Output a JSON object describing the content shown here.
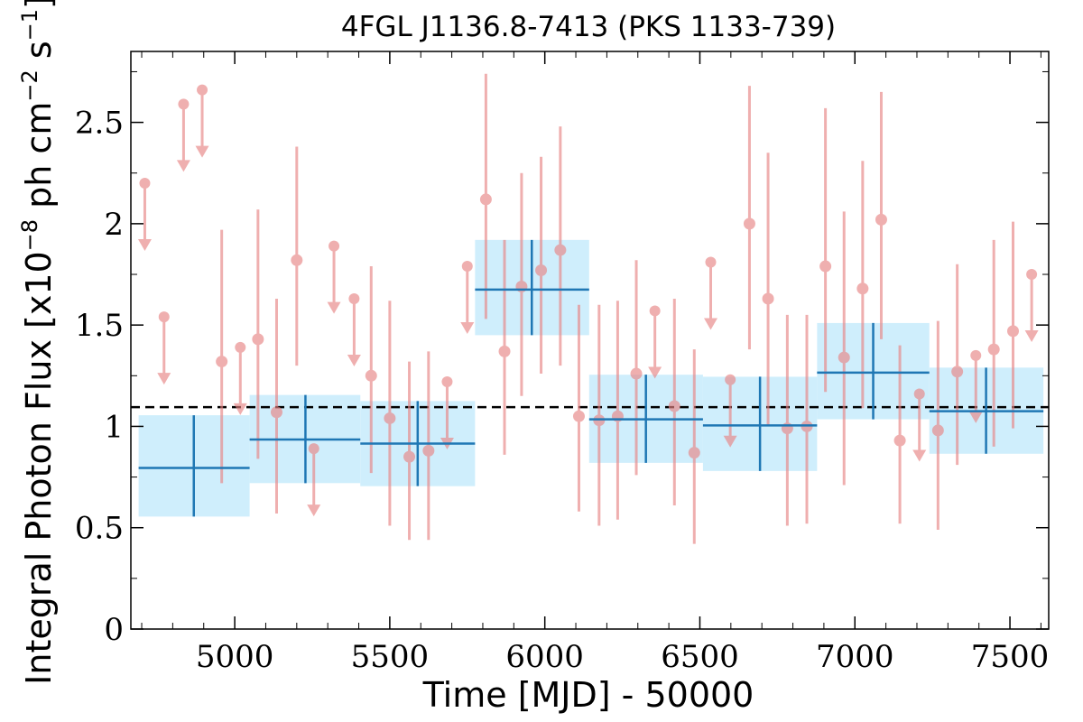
{
  "chart_data": {
    "type": "scatter",
    "title": "4FGL J1136.8-7413 (PKS 1133-739)",
    "xlabel": "Time [MJD] - 50000",
    "ylabel": {
      "prefix": "Integral Photon Flux [x10",
      "exp1": "−8",
      "mid": " ph cm",
      "exp2": "−2",
      "mid2": " s",
      "exp3": "−1",
      "suffix": "]"
    },
    "xlim": [
      4665,
      7625
    ],
    "ylim": [
      0,
      2.85
    ],
    "xticks": [
      5000,
      5500,
      6000,
      6500,
      7000,
      7500
    ],
    "yticks": [
      {
        "value": 0,
        "label": "0"
      },
      {
        "value": 0.5,
        "label": "0.5"
      },
      {
        "value": 1,
        "label": "1"
      },
      {
        "value": 1.5,
        "label": "1.5"
      },
      {
        "value": 2,
        "label": "2"
      },
      {
        "value": 2.5,
        "label": "2.5"
      }
    ],
    "reference_line": {
      "y": 1.095,
      "style": "dashed",
      "color": "#000000"
    },
    "colors": {
      "short_bins": "#e88585",
      "long_bins": "#1f77b4",
      "long_bins_band": "#cfeefc"
    },
    "series": [
      {
        "kind": "short_bins",
        "detections": [
          {
            "x": 5075,
            "y": 1.43,
            "ylo": 0.84,
            "yhi": 2.07
          },
          {
            "x": 5135,
            "y": 1.07,
            "ylo": 0.57,
            "yhi": 1.63
          },
          {
            "x": 5200,
            "y": 1.82,
            "ylo": 1.3,
            "yhi": 2.38
          },
          {
            "x": 4958,
            "y": 1.32,
            "ylo": 0.72,
            "yhi": 1.97
          },
          {
            "x": 5440,
            "y": 1.25,
            "ylo": 0.77,
            "yhi": 1.79
          },
          {
            "x": 5500,
            "y": 1.04,
            "ylo": 0.51,
            "yhi": 1.62
          },
          {
            "x": 5563,
            "y": 0.85,
            "ylo": 0.44,
            "yhi": 1.32
          },
          {
            "x": 5625,
            "y": 0.88,
            "ylo": 0.44,
            "yhi": 1.37
          },
          {
            "x": 5810,
            "y": 2.12,
            "ylo": 1.53,
            "yhi": 2.74
          },
          {
            "x": 5870,
            "y": 1.37,
            "ylo": 0.86,
            "yhi": 1.92
          },
          {
            "x": 5925,
            "y": 1.69,
            "ylo": 1.15,
            "yhi": 2.25
          },
          {
            "x": 5988,
            "y": 1.77,
            "ylo": 1.26,
            "yhi": 2.33
          },
          {
            "x": 6050,
            "y": 1.87,
            "ylo": 1.3,
            "yhi": 2.48
          },
          {
            "x": 6110,
            "y": 1.05,
            "ylo": 0.58,
            "yhi": 1.6
          },
          {
            "x": 6175,
            "y": 1.03,
            "ylo": 0.51,
            "yhi": 1.6
          },
          {
            "x": 6235,
            "y": 1.05,
            "ylo": 0.54,
            "yhi": 1.62
          },
          {
            "x": 6295,
            "y": 1.26,
            "ylo": 0.76,
            "yhi": 1.82
          },
          {
            "x": 6418,
            "y": 1.1,
            "ylo": 0.61,
            "yhi": 1.63
          },
          {
            "x": 6482,
            "y": 0.87,
            "ylo": 0.42,
            "yhi": 1.38
          },
          {
            "x": 6660,
            "y": 2.0,
            "ylo": 1.38,
            "yhi": 2.68
          },
          {
            "x": 6720,
            "y": 1.63,
            "ylo": 1.0,
            "yhi": 2.35
          },
          {
            "x": 6782,
            "y": 0.99,
            "ylo": 0.51,
            "yhi": 1.55
          },
          {
            "x": 6845,
            "y": 1.0,
            "ylo": 0.52,
            "yhi": 1.55
          },
          {
            "x": 6905,
            "y": 1.79,
            "ylo": 1.17,
            "yhi": 2.57
          },
          {
            "x": 6965,
            "y": 1.34,
            "ylo": 0.71,
            "yhi": 2.06
          },
          {
            "x": 7025,
            "y": 1.68,
            "ylo": 1.09,
            "yhi": 2.31
          },
          {
            "x": 7085,
            "y": 2.02,
            "ylo": 1.43,
            "yhi": 2.65
          },
          {
            "x": 7145,
            "y": 0.93,
            "ylo": 0.52,
            "yhi": 1.4
          },
          {
            "x": 7268,
            "y": 0.98,
            "ylo": 0.49,
            "yhi": 1.52
          },
          {
            "x": 7330,
            "y": 1.27,
            "ylo": 0.81,
            "yhi": 1.8
          },
          {
            "x": 7448,
            "y": 1.38,
            "ylo": 0.9,
            "yhi": 1.92
          },
          {
            "x": 7510,
            "y": 1.47,
            "ylo": 0.99,
            "yhi": 2.01
          }
        ],
        "upper_limits": [
          {
            "x": 4710,
            "y": 2.2
          },
          {
            "x": 4772,
            "y": 1.54
          },
          {
            "x": 4835,
            "y": 2.59
          },
          {
            "x": 4895,
            "y": 2.66
          },
          {
            "x": 5018,
            "y": 1.39
          },
          {
            "x": 5255,
            "y": 0.89
          },
          {
            "x": 5320,
            "y": 1.89
          },
          {
            "x": 5385,
            "y": 1.63
          },
          {
            "x": 5685,
            "y": 1.22
          },
          {
            "x": 5750,
            "y": 1.79
          },
          {
            "x": 6355,
            "y": 1.57
          },
          {
            "x": 6535,
            "y": 1.81
          },
          {
            "x": 6598,
            "y": 1.23
          },
          {
            "x": 7208,
            "y": 1.16
          },
          {
            "x": 7390,
            "y": 1.35
          },
          {
            "x": 7570,
            "y": 1.75
          }
        ]
      },
      {
        "kind": "long_bins",
        "bins": [
          {
            "x0": 4690,
            "x1": 5048,
            "xc": 4868,
            "y": 0.795,
            "ylo": 0.555,
            "yhi": 1.055
          },
          {
            "x0": 5048,
            "x1": 5405,
            "xc": 5228,
            "y": 0.935,
            "ylo": 0.72,
            "yhi": 1.155
          },
          {
            "x0": 5405,
            "x1": 5775,
            "xc": 5590,
            "y": 0.915,
            "ylo": 0.705,
            "yhi": 1.125
          },
          {
            "x0": 5775,
            "x1": 6143,
            "xc": 5958,
            "y": 1.675,
            "ylo": 1.45,
            "yhi": 1.92
          },
          {
            "x0": 6143,
            "x1": 6510,
            "xc": 6326,
            "y": 1.035,
            "ylo": 0.82,
            "yhi": 1.255
          },
          {
            "x0": 6510,
            "x1": 6878,
            "xc": 6694,
            "y": 1.005,
            "ylo": 0.78,
            "yhi": 1.245
          },
          {
            "x0": 6878,
            "x1": 7240,
            "xc": 7059,
            "y": 1.265,
            "ylo": 1.035,
            "yhi": 1.51
          },
          {
            "x0": 7240,
            "x1": 7608,
            "xc": 7423,
            "y": 1.075,
            "ylo": 0.865,
            "yhi": 1.29
          }
        ]
      }
    ]
  }
}
